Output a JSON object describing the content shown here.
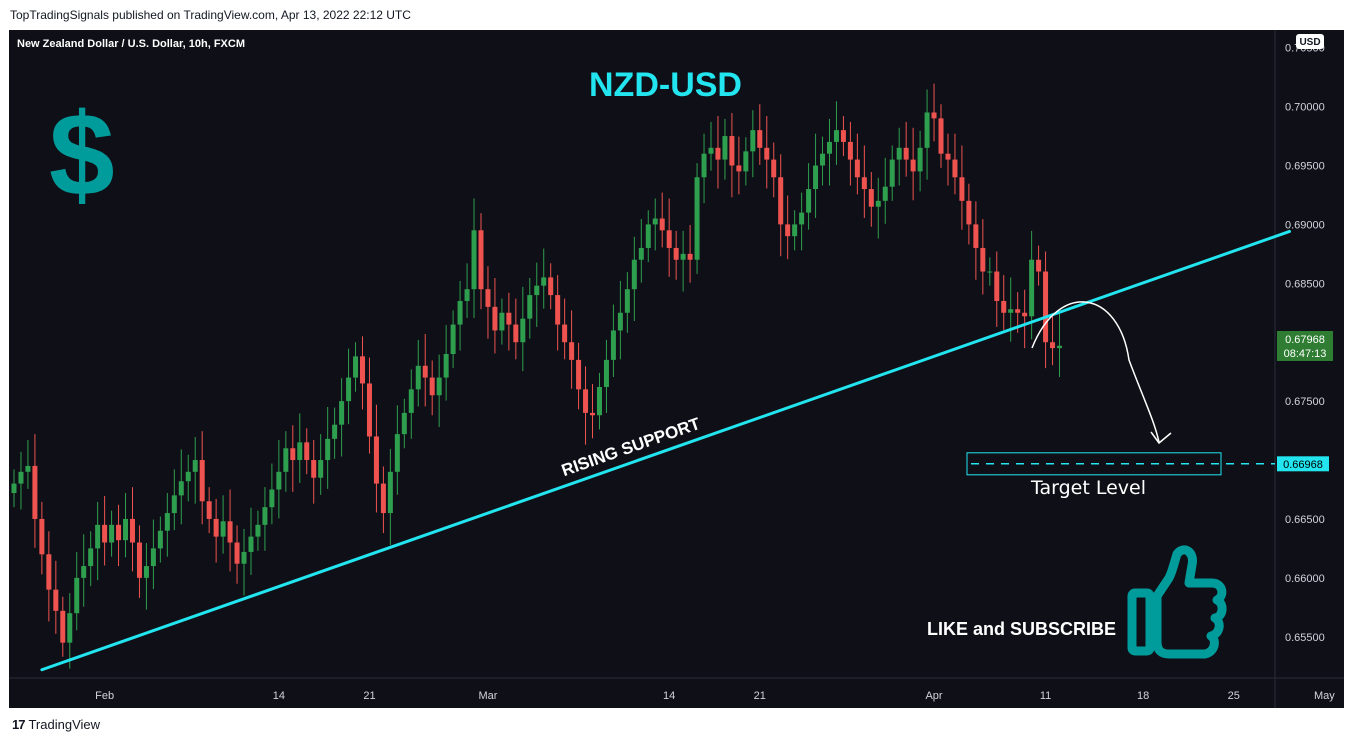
{
  "header": {
    "publisher_line": "TopTradingSignals published on TradingView.com, Apr 13, 2022 22:12 UTC"
  },
  "footer": {
    "brand": "TradingView",
    "logo_glyph": "17"
  },
  "chart_data": {
    "type": "candlestick",
    "symbol_line": "New Zealand Dollar / U.S. Dollar, 10h, FXCM",
    "title": "NZD-USD",
    "currency_badge": "USD",
    "y_ticks": [
      "0.70500",
      "0.70000",
      "0.69500",
      "0.69000",
      "0.68500",
      "0.68000",
      "0.67500",
      "0.67000",
      "0.66500",
      "0.66000",
      "0.65500"
    ],
    "y_tick_values": [
      0.705,
      0.7,
      0.695,
      0.69,
      0.685,
      0.68,
      0.675,
      0.67,
      0.665,
      0.66,
      0.655
    ],
    "ylim": [
      0.6515,
      0.7065
    ],
    "x_ticks": [
      {
        "label": "Feb",
        "index": 13
      },
      {
        "label": "14",
        "index": 38
      },
      {
        "label": "21",
        "index": 51
      },
      {
        "label": "Mar",
        "index": 68
      },
      {
        "label": "14",
        "index": 94
      },
      {
        "label": "21",
        "index": 107
      },
      {
        "label": "Apr",
        "index": 132
      },
      {
        "label": "11",
        "index": 148
      },
      {
        "label": "18",
        "index": 162
      },
      {
        "label": "25",
        "index": 175
      },
      {
        "label": "May",
        "index": 188
      }
    ],
    "current_price": "0.67968",
    "current_value": 0.67968,
    "countdown": "08:47:13",
    "target_price": "0.66968",
    "target_value": 0.66968,
    "target_label": "Target Level",
    "support_label": "RISING SUPPORT",
    "support_line": {
      "start": {
        "index": 4,
        "value": 0.6522
      },
      "end": {
        "index": 183,
        "value": 0.6894
      }
    },
    "cta_text": "LIKE and SUBSCRIBE",
    "colors": {
      "up": "#26a69a",
      "down": "#ef5350",
      "up_body": "#2e9e4f",
      "support": "#22e5f0",
      "title": "#22e5f0",
      "accent": "#009c9c",
      "price_badge": "#2e7d32"
    },
    "icons": [
      "dollar-sign-icon",
      "thumbs-up-icon",
      "tradingview-logo-icon"
    ],
    "closes": [
      0.668,
      0.669,
      0.6695,
      0.665,
      0.662,
      0.659,
      0.6572,
      0.6545,
      0.657,
      0.66,
      0.661,
      0.6625,
      0.6645,
      0.663,
      0.6645,
      0.6632,
      0.665,
      0.663,
      0.66,
      0.661,
      0.6625,
      0.664,
      0.6655,
      0.667,
      0.6682,
      0.669,
      0.67,
      0.6665,
      0.665,
      0.6635,
      0.6648,
      0.663,
      0.6612,
      0.6622,
      0.6635,
      0.6645,
      0.666,
      0.6675,
      0.669,
      0.671,
      0.67,
      0.6715,
      0.67,
      0.6685,
      0.67,
      0.6718,
      0.673,
      0.675,
      0.677,
      0.6788,
      0.6765,
      0.672,
      0.668,
      0.6655,
      0.669,
      0.6722,
      0.674,
      0.676,
      0.678,
      0.677,
      0.6755,
      0.677,
      0.679,
      0.6815,
      0.6835,
      0.6845,
      0.6895,
      0.6845,
      0.683,
      0.681,
      0.6825,
      0.6815,
      0.68,
      0.682,
      0.684,
      0.6848,
      0.6855,
      0.684,
      0.6815,
      0.68,
      0.6785,
      0.676,
      0.674,
      0.6738,
      0.6762,
      0.6785,
      0.681,
      0.6825,
      0.6845,
      0.687,
      0.688,
      0.69,
      0.6905,
      0.6895,
      0.688,
      0.687,
      0.6875,
      0.687,
      0.694,
      0.696,
      0.6965,
      0.6955,
      0.6975,
      0.695,
      0.6945,
      0.6962,
      0.698,
      0.6965,
      0.6955,
      0.694,
      0.69,
      0.689,
      0.69,
      0.691,
      0.693,
      0.695,
      0.696,
      0.697,
      0.698,
      0.697,
      0.6955,
      0.694,
      0.693,
      0.6915,
      0.692,
      0.6932,
      0.6955,
      0.6965,
      0.6955,
      0.6945,
      0.6965,
      0.6995,
      0.699,
      0.696,
      0.6955,
      0.694,
      0.692,
      0.69,
      0.688,
      0.686,
      0.686,
      0.6835,
      0.6825,
      0.6828,
      0.6825,
      0.6822,
      0.687,
      0.686,
      0.68,
      0.6795,
      0.6797
    ]
  }
}
